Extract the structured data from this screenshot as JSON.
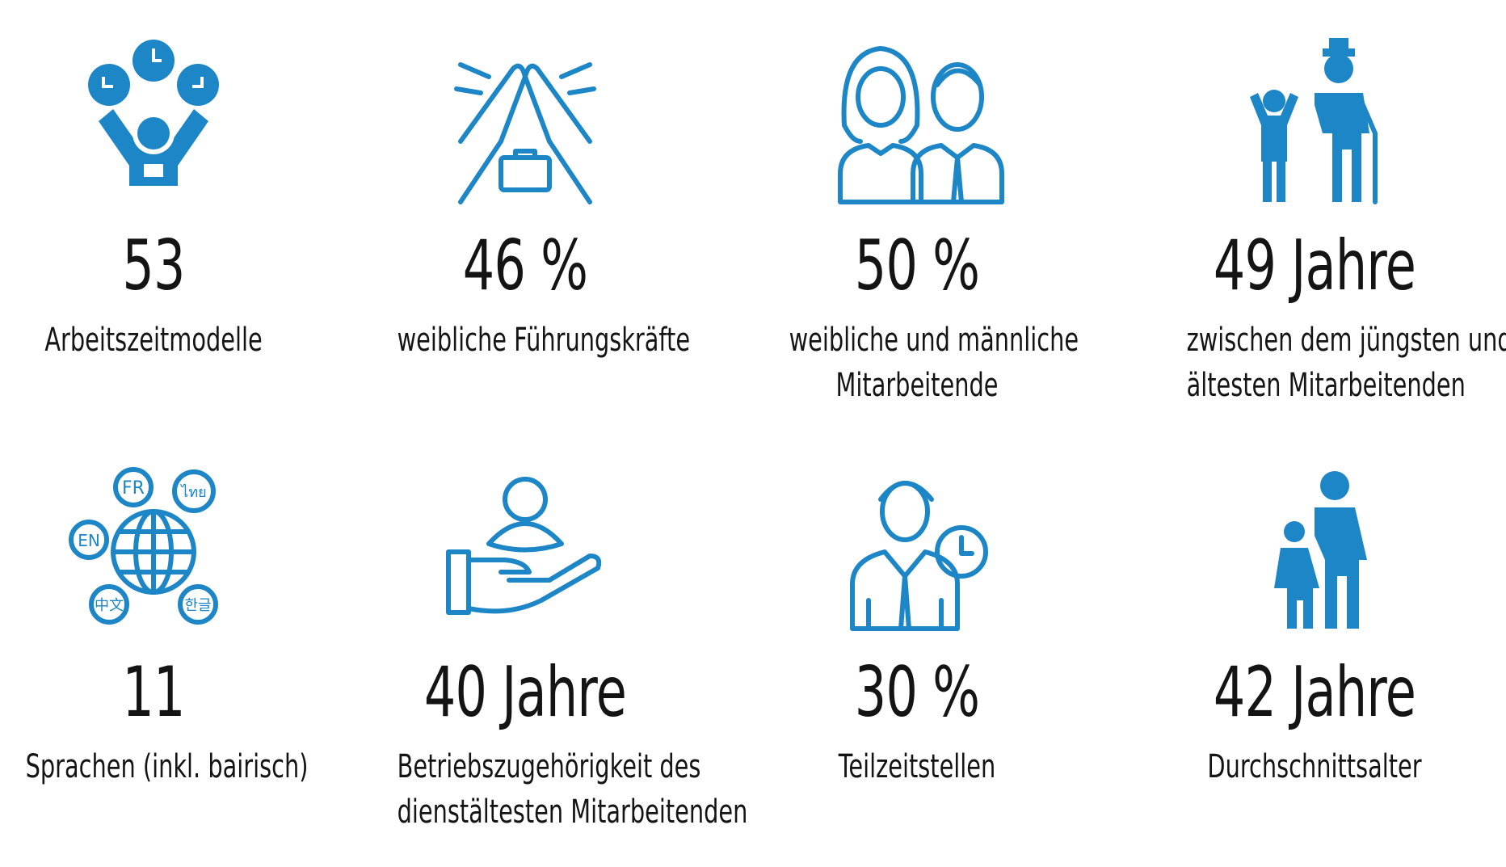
{
  "theme": {
    "icon_color": "#1c86c6",
    "text_color": "#141414",
    "background": "#ffffff"
  },
  "stats": [
    {
      "value": "53",
      "label_lines": [
        "Arbeitszeitmodelle"
      ],
      "icon": "juggling-clocks-icon"
    },
    {
      "value": "46 %",
      "label_lines": [
        "weibliche Führungskräfte"
      ],
      "icon": "high-five-briefcase-icon"
    },
    {
      "value": "50 %",
      "label_lines": [
        "weibliche und männliche",
        "Mitarbeitende"
      ],
      "icon": "woman-man-icon"
    },
    {
      "value": "49 Jahre",
      "label_lines": [
        "zwischen dem jüngsten und",
        "ältesten Mitarbeitenden"
      ],
      "icon": "child-elderly-icon"
    },
    {
      "value": "11",
      "label_lines": [
        "Sprachen (inkl. bairisch)"
      ],
      "icon": "languages-globe-icon",
      "bubbles": [
        "FR",
        "ไทย",
        "EN",
        "中文",
        "한글"
      ]
    },
    {
      "value": "40 Jahre",
      "label_lines": [
        "Betriebszugehörigkeit des",
        "dienstältesten Mitarbeitenden"
      ],
      "icon": "hand-person-icon"
    },
    {
      "value": "30 %",
      "label_lines": [
        "Teilzeitstellen"
      ],
      "icon": "man-clock-icon"
    },
    {
      "value": "42 Jahre",
      "label_lines": [
        "Durchschnittsalter"
      ],
      "icon": "adult-child-icon"
    }
  ]
}
